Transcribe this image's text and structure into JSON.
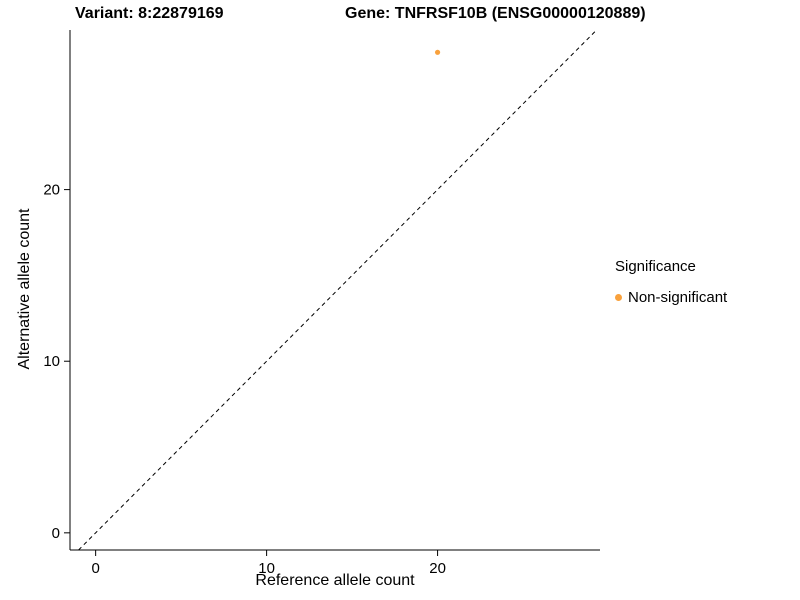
{
  "header": {
    "variant_title": "Variant: 8:22879169",
    "gene_title": "Gene: TNFRSF10B (ENSG00000120889)"
  },
  "chart_data": {
    "type": "scatter",
    "title": "Variant: 8:22879169 — Gene: TNFRSF10B (ENSG00000120889)",
    "xlabel": "Reference allele count",
    "ylabel": "Alternative allele count",
    "xlim": [
      -1.5,
      29.5
    ],
    "ylim": [
      -1,
      29.3
    ],
    "xticks": [
      0,
      10,
      20
    ],
    "yticks": [
      0,
      10,
      20
    ],
    "grid": false,
    "points": [
      {
        "x": 20,
        "y": 28,
        "series": "Non-significant"
      }
    ],
    "reference_line": {
      "type": "identity",
      "equation": "y = x",
      "style": "dashed",
      "color": "#000000"
    },
    "point_radius_px": 2.6,
    "legend": {
      "title": "Significance",
      "position": "right",
      "entries": [
        {
          "label": "Non-significant",
          "color": "#F9A13C"
        }
      ]
    }
  }
}
